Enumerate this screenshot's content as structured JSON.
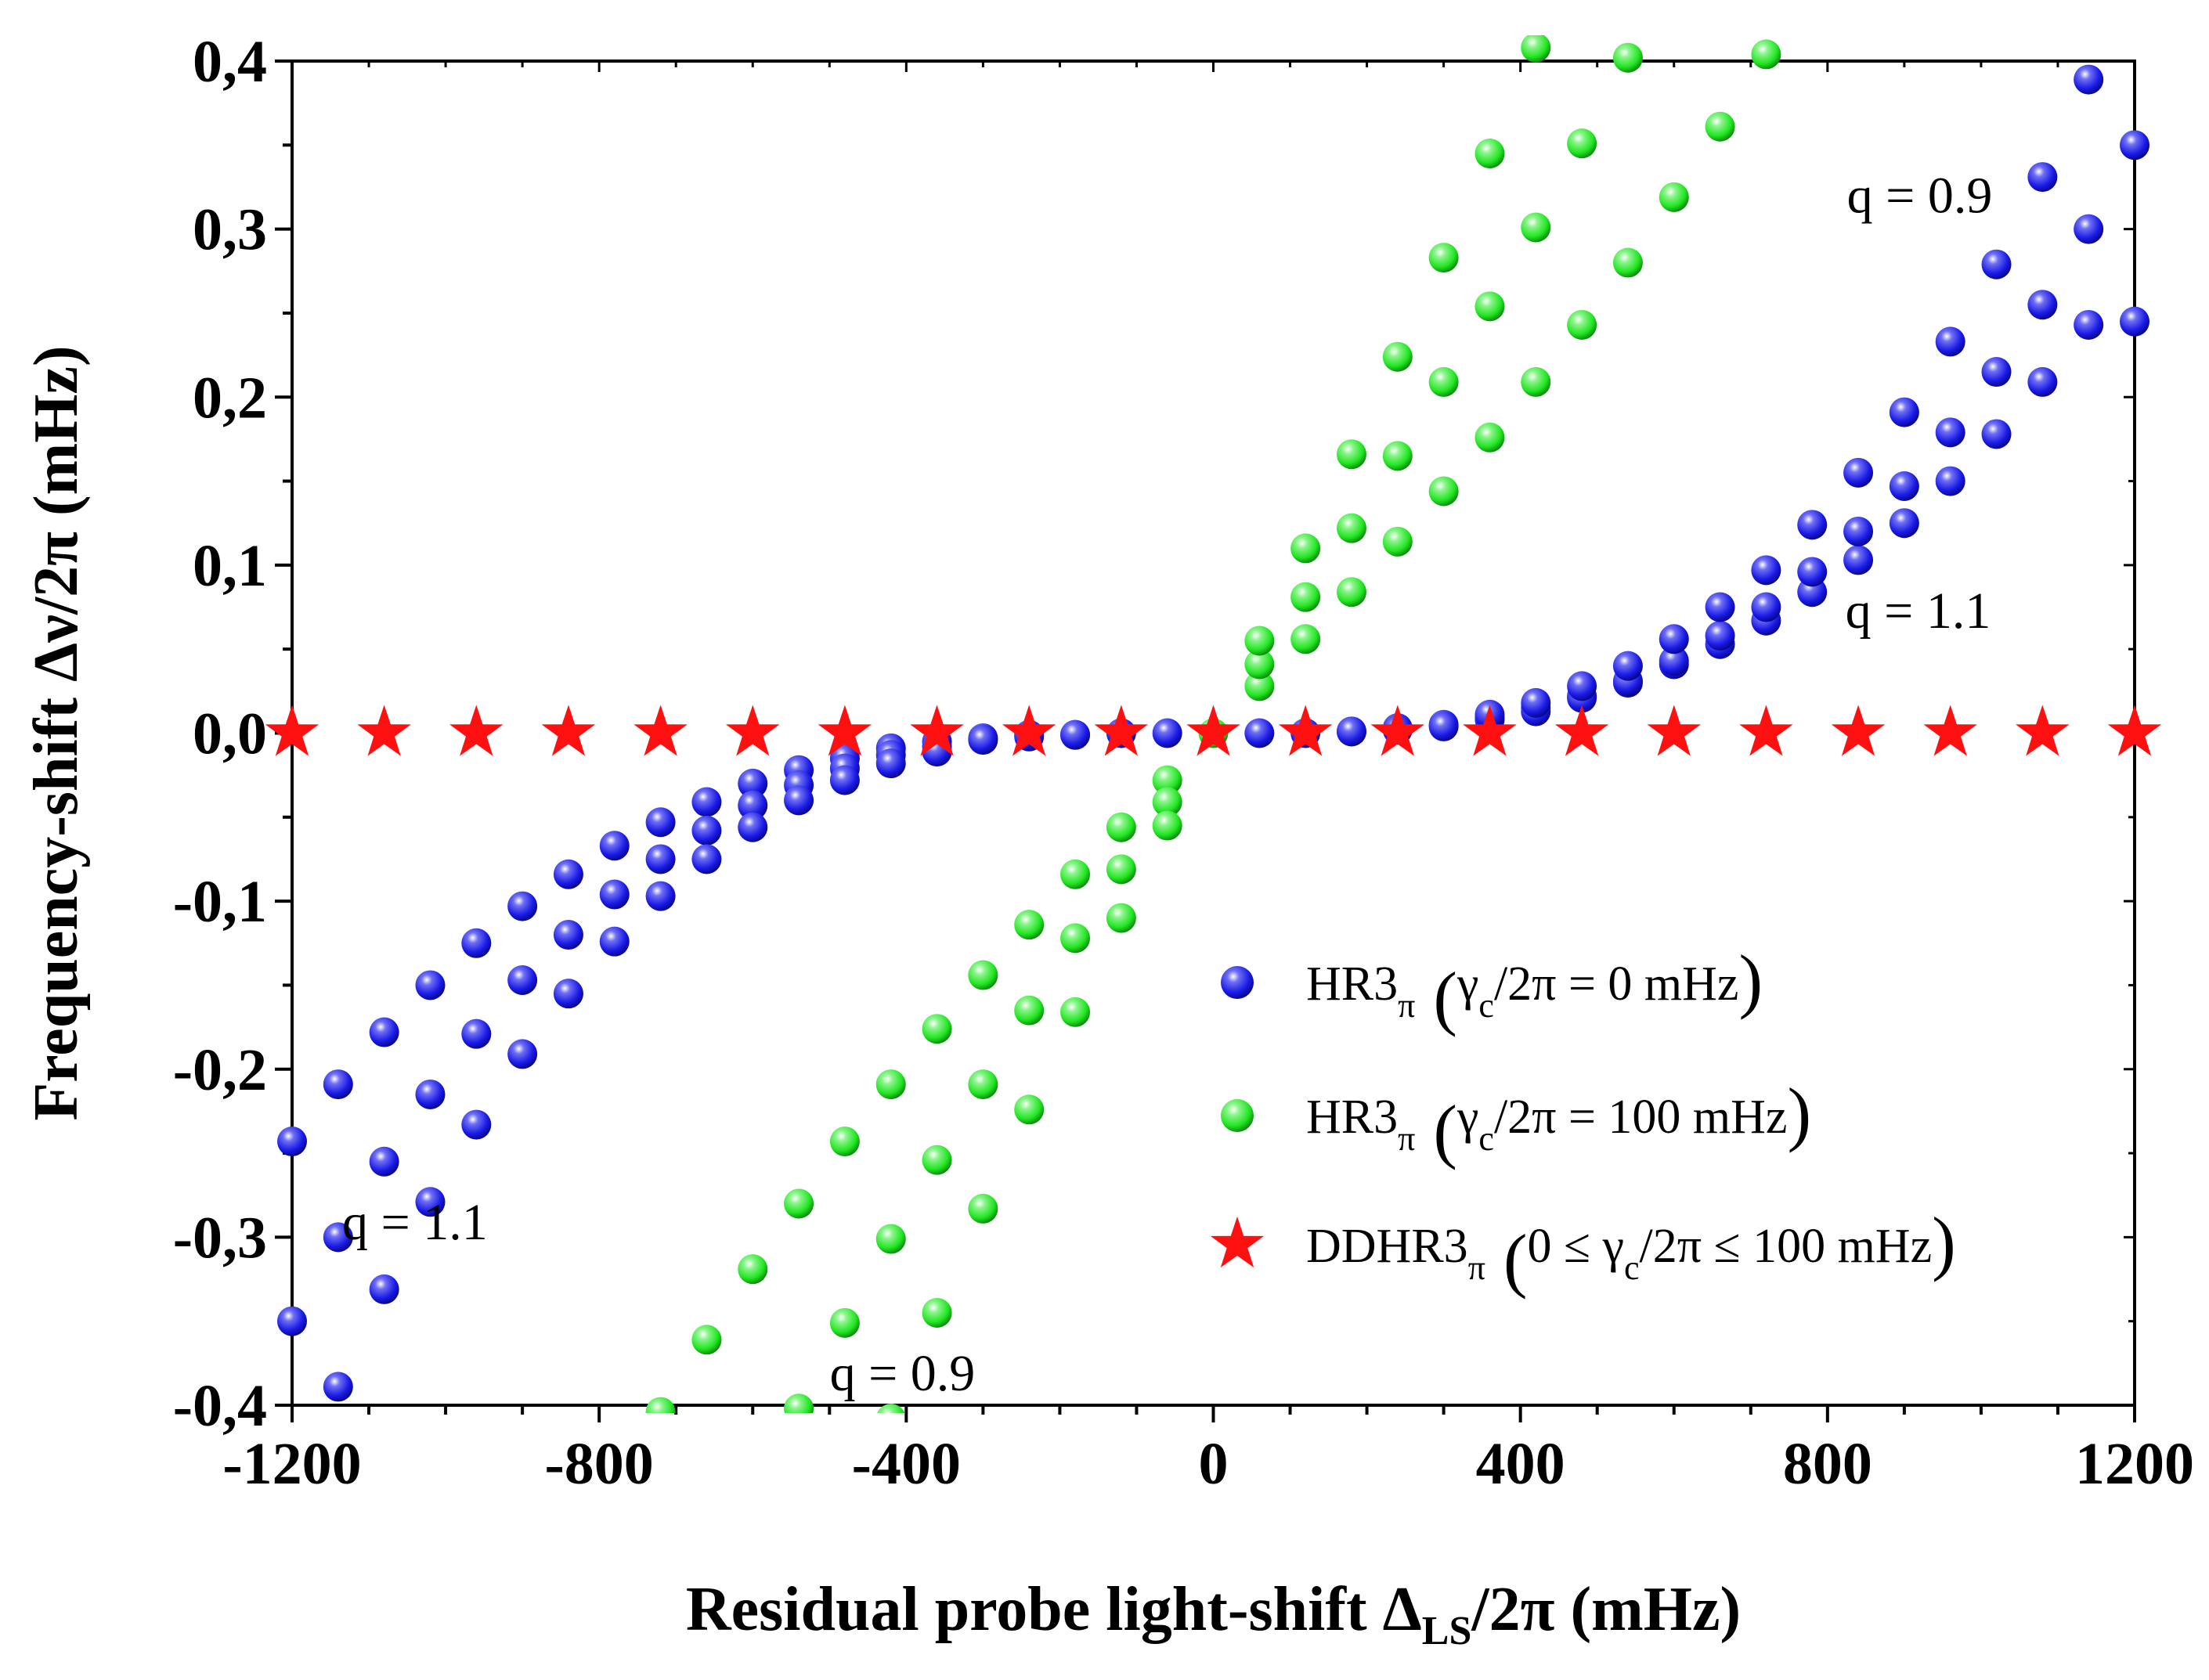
{
  "chart_data": {
    "type": "scatter",
    "xlabel": "Residual probe light-shift Δ_LS/2π (mHz)",
    "ylabel": "Frequency-shift Δν/2π (mHz)",
    "xlim": [
      -1200,
      1200
    ],
    "ylim": [
      -0.4,
      0.4
    ],
    "x_ticks": [
      -1200,
      -800,
      -400,
      0,
      400,
      800,
      1200
    ],
    "x_tick_labels": [
      "-1200",
      "-800",
      "-400",
      "0",
      "400",
      "800",
      "1200"
    ],
    "y_ticks": [
      -0.4,
      -0.3,
      -0.2,
      -0.1,
      0.0,
      0.1,
      0.2,
      0.3,
      0.4
    ],
    "y_tick_labels": [
      "-0,4",
      "-0,3",
      "-0,2",
      "-0,1",
      "0,0",
      "0,1",
      "0,2",
      "0,3",
      "0,4"
    ],
    "grid": false,
    "legend_position": "right",
    "colors": {
      "blue": "#1a1ae6",
      "green": "#22e622",
      "red": "#ff1010"
    },
    "series": [
      {
        "id": "hr3_gamma0",
        "marker": "sphere",
        "color": "#1a1ae6",
        "legend": {
          "main": "HR3",
          "sub": "π",
          "paren_pre": "γ",
          "paren_sub": "c",
          "paren_post": "/2π = 0 mHz"
        },
        "points": [
          [
            -1200,
            -0.243
          ],
          [
            -1140,
            -0.209
          ],
          [
            -1080,
            -0.178
          ],
          [
            -1020,
            -0.15
          ],
          [
            -960,
            -0.125
          ],
          [
            -900,
            -0.103
          ],
          [
            -840,
            -0.084
          ],
          [
            -780,
            -0.067
          ],
          [
            -720,
            -0.053
          ],
          [
            -660,
            -0.041
          ],
          [
            -600,
            -0.03
          ],
          [
            -540,
            -0.022
          ],
          [
            -480,
            -0.015
          ],
          [
            -420,
            -0.009
          ],
          [
            -360,
            -0.005
          ],
          [
            -300,
            -0.003
          ],
          [
            -240,
            -0.001
          ],
          [
            -180,
            -0.001
          ],
          [
            -120,
            0.0
          ],
          [
            -60,
            0.0
          ],
          [
            60,
            0.0
          ],
          [
            120,
            0.0
          ],
          [
            180,
            0.001
          ],
          [
            240,
            0.003
          ],
          [
            300,
            0.005
          ],
          [
            360,
            0.009
          ],
          [
            420,
            0.015
          ],
          [
            480,
            0.022
          ],
          [
            540,
            0.03
          ],
          [
            600,
            0.041
          ],
          [
            660,
            0.053
          ],
          [
            720,
            0.067
          ],
          [
            780,
            0.084
          ],
          [
            840,
            0.103
          ],
          [
            900,
            0.125
          ],
          [
            960,
            0.15
          ],
          [
            1020,
            0.178
          ],
          [
            1080,
            0.209
          ],
          [
            1140,
            0.243
          ],
          [
            -1200,
            -0.35
          ],
          [
            -1140,
            -0.3
          ],
          [
            -1080,
            -0.255
          ],
          [
            -1020,
            -0.215
          ],
          [
            -960,
            -0.179
          ],
          [
            -900,
            -0.147
          ],
          [
            -840,
            -0.12
          ],
          [
            -780,
            -0.096
          ],
          [
            -720,
            -0.075
          ],
          [
            -660,
            -0.058
          ],
          [
            -600,
            -0.043
          ],
          [
            -540,
            -0.031
          ],
          [
            -480,
            -0.021
          ],
          [
            -420,
            -0.013
          ],
          [
            -360,
            -0.008
          ],
          [
            -300,
            -0.004
          ],
          [
            -240,
            -0.002
          ],
          [
            -180,
            -0.001
          ],
          [
            180,
            0.001
          ],
          [
            240,
            0.002
          ],
          [
            300,
            0.004
          ],
          [
            360,
            0.008
          ],
          [
            420,
            0.013
          ],
          [
            480,
            0.021
          ],
          [
            540,
            0.031
          ],
          [
            600,
            0.043
          ],
          [
            660,
            0.058
          ],
          [
            720,
            0.075
          ],
          [
            780,
            0.096
          ],
          [
            840,
            0.12
          ],
          [
            900,
            0.147
          ],
          [
            960,
            0.179
          ],
          [
            1020,
            0.215
          ],
          [
            1080,
            0.255
          ],
          [
            1140,
            0.3
          ],
          [
            1200,
            0.35
          ],
          [
            -1140,
            -0.389
          ],
          [
            -1080,
            -0.331
          ],
          [
            -1020,
            -0.279
          ],
          [
            -960,
            -0.233
          ],
          [
            -900,
            -0.191
          ],
          [
            -840,
            -0.155
          ],
          [
            -780,
            -0.124
          ],
          [
            -720,
            -0.097
          ],
          [
            -660,
            -0.075
          ],
          [
            -600,
            -0.056
          ],
          [
            -540,
            -0.04
          ],
          [
            -480,
            -0.028
          ],
          [
            -420,
            -0.018
          ],
          [
            -360,
            -0.011
          ],
          [
            360,
            0.011
          ],
          [
            420,
            0.018
          ],
          [
            480,
            0.028
          ],
          [
            540,
            0.04
          ],
          [
            600,
            0.056
          ],
          [
            660,
            0.075
          ],
          [
            720,
            0.097
          ],
          [
            780,
            0.124
          ],
          [
            840,
            0.155
          ],
          [
            900,
            0.191
          ],
          [
            960,
            0.233
          ],
          [
            1020,
            0.279
          ],
          [
            1080,
            0.331
          ],
          [
            1140,
            0.389
          ],
          [
            1200,
            0.245
          ]
        ]
      },
      {
        "id": "hr3_gamma100",
        "marker": "sphere",
        "color": "#22e622",
        "legend": {
          "main": "HR3",
          "sub": "π",
          "paren_pre": "γ",
          "paren_sub": "c",
          "paren_post": "/2π = 100 mHz"
        },
        "points": [
          [
            -60,
            -0.028
          ],
          [
            -120,
            -0.056
          ],
          [
            -180,
            -0.084
          ],
          [
            -240,
            -0.114
          ],
          [
            -300,
            -0.144
          ],
          [
            -360,
            -0.176
          ],
          [
            -420,
            -0.209
          ],
          [
            -480,
            -0.243
          ],
          [
            -540,
            -0.28
          ],
          [
            -600,
            -0.319
          ],
          [
            -660,
            -0.361
          ],
          [
            -720,
            -0.404
          ],
          [
            60,
            0.028
          ],
          [
            120,
            0.056
          ],
          [
            180,
            0.084
          ],
          [
            240,
            0.114
          ],
          [
            300,
            0.144
          ],
          [
            360,
            0.176
          ],
          [
            420,
            0.209
          ],
          [
            480,
            0.243
          ],
          [
            540,
            0.28
          ],
          [
            600,
            0.319
          ],
          [
            660,
            0.361
          ],
          [
            720,
            0.404
          ],
          [
            -60,
            -0.041
          ],
          [
            -120,
            -0.081
          ],
          [
            -180,
            -0.122
          ],
          [
            -240,
            -0.165
          ],
          [
            -300,
            -0.209
          ],
          [
            -360,
            -0.254
          ],
          [
            -420,
            -0.301
          ],
          [
            -480,
            -0.351
          ],
          [
            -540,
            -0.402
          ],
          [
            60,
            0.041
          ],
          [
            120,
            0.081
          ],
          [
            180,
            0.122
          ],
          [
            240,
            0.165
          ],
          [
            300,
            0.209
          ],
          [
            360,
            0.254
          ],
          [
            420,
            0.301
          ],
          [
            480,
            0.351
          ],
          [
            540,
            0.402
          ],
          [
            -60,
            -0.055
          ],
          [
            -120,
            -0.11
          ],
          [
            -180,
            -0.166
          ],
          [
            -240,
            -0.224
          ],
          [
            -300,
            -0.283
          ],
          [
            -360,
            -0.345
          ],
          [
            -420,
            -0.408
          ],
          [
            60,
            0.055
          ],
          [
            120,
            0.11
          ],
          [
            180,
            0.166
          ],
          [
            240,
            0.224
          ],
          [
            300,
            0.283
          ],
          [
            360,
            0.345
          ],
          [
            420,
            0.408
          ],
          [
            0,
            0.0
          ]
        ]
      },
      {
        "id": "ddhr3",
        "marker": "star",
        "color": "#ff1010",
        "legend": {
          "main": "DDHR3",
          "sub": "π",
          "paren_pre": "0 ≤ γ",
          "paren_sub": "c",
          "paren_post": "/2π ≤ 100 mHz"
        },
        "points": [
          [
            -1200,
            0.0
          ],
          [
            -1080,
            0.0
          ],
          [
            -960,
            0.0
          ],
          [
            -840,
            0.0
          ],
          [
            -720,
            0.0
          ],
          [
            -600,
            0.0
          ],
          [
            -480,
            0.0
          ],
          [
            -360,
            0.0
          ],
          [
            -240,
            0.0
          ],
          [
            -120,
            0.0
          ],
          [
            0,
            0.0
          ],
          [
            120,
            0.0
          ],
          [
            240,
            0.0
          ],
          [
            360,
            0.0
          ],
          [
            480,
            0.0
          ],
          [
            600,
            0.0
          ],
          [
            720,
            0.0
          ],
          [
            840,
            0.0
          ],
          [
            960,
            0.0
          ],
          [
            1080,
            0.0
          ],
          [
            1200,
            0.0
          ]
        ]
      }
    ],
    "annotations": [
      {
        "text": "q = 0.9",
        "x": 920,
        "y": 0.32
      },
      {
        "text": "q = 1.1",
        "x": 918,
        "y": 0.073
      },
      {
        "text": "q = 1.1",
        "x": -1040,
        "y": -0.291
      },
      {
        "text": "q = 0.9",
        "x": -405,
        "y": -0.381
      }
    ]
  }
}
